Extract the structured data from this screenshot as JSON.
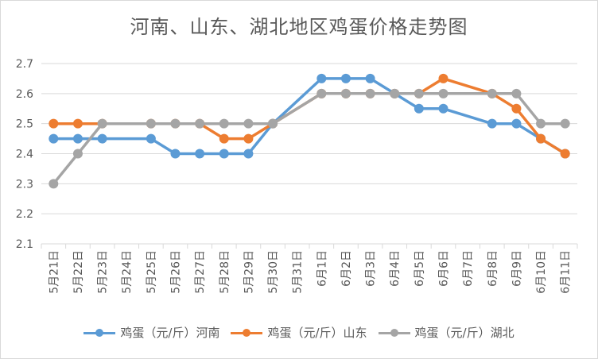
{
  "chart_data": {
    "type": "line",
    "title": "河南、山东、湖北地区鸡蛋价格走势图",
    "xlabel": "",
    "ylabel": "",
    "ylim": [
      2.1,
      2.7
    ],
    "yticks": [
      "2.1",
      "2.2",
      "2.3",
      "2.4",
      "2.5",
      "2.6",
      "2.7"
    ],
    "grid": true,
    "legend_position": "bottom",
    "categories": [
      "5月21日",
      "5月22日",
      "5月23日",
      "5月24日",
      "5月25日",
      "5月26日",
      "5月27日",
      "5月28日",
      "5月29日",
      "5月30日",
      "5月31日",
      "6月1日",
      "6月2日",
      "6月3日",
      "6月4日",
      "6月5日",
      "6月6日",
      "6月7日",
      "6月8日",
      "6月9日",
      "6月10日",
      "6月11日"
    ],
    "series": [
      {
        "name": "鸡蛋（元/斤）河南",
        "color": "#5b9bd5",
        "values": [
          2.45,
          2.45,
          2.45,
          null,
          2.45,
          2.4,
          2.4,
          2.4,
          2.4,
          2.5,
          null,
          2.65,
          2.65,
          2.65,
          2.6,
          2.55,
          2.55,
          null,
          2.5,
          2.5,
          2.45,
          2.4
        ]
      },
      {
        "name": "鸡蛋（元/斤）山东",
        "color": "#ed7d31",
        "values": [
          2.5,
          2.5,
          2.5,
          null,
          2.5,
          2.5,
          2.5,
          2.45,
          2.45,
          2.5,
          null,
          2.6,
          2.6,
          2.6,
          2.6,
          2.6,
          2.65,
          null,
          2.6,
          2.55,
          2.45,
          2.4
        ]
      },
      {
        "name": "鸡蛋（元/斤）湖北",
        "color": "#a5a5a5",
        "values": [
          2.3,
          2.4,
          2.5,
          null,
          2.5,
          2.5,
          2.5,
          2.5,
          2.5,
          2.5,
          null,
          2.6,
          2.6,
          2.6,
          2.6,
          2.6,
          2.6,
          null,
          2.6,
          2.6,
          2.5,
          2.5
        ]
      }
    ]
  }
}
